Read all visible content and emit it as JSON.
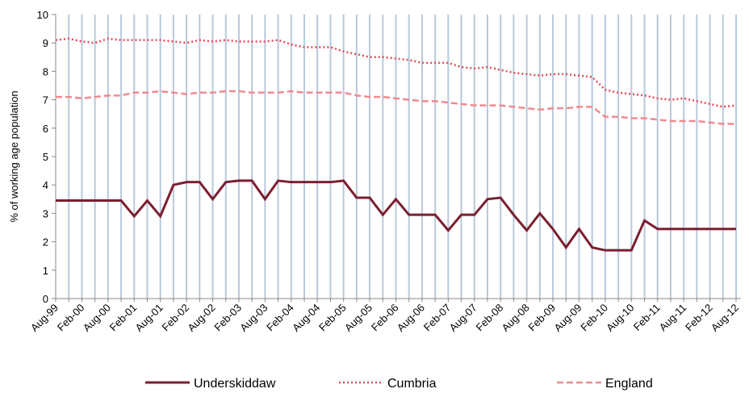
{
  "chart_data": {
    "type": "line",
    "y_label": "% of working age population",
    "categories": [
      "Aug-99",
      null,
      "Feb-00",
      null,
      "Aug-00",
      null,
      "Feb-01",
      null,
      "Aug-01",
      null,
      "Feb-02",
      null,
      "Aug-02",
      null,
      "Feb-03",
      null,
      "Aug-03",
      null,
      "Feb-04",
      null,
      "Aug-04",
      null,
      "Feb-05",
      null,
      "Aug-05",
      null,
      "Feb-06",
      null,
      "Aug-06",
      null,
      "Feb-07",
      null,
      "Aug-07",
      null,
      "Feb-08",
      null,
      "Aug-08",
      null,
      "Feb-09",
      null,
      "Aug-09",
      null,
      "Feb-10",
      null,
      "Aug-10",
      null,
      "Feb-11",
      null,
      "Aug-11",
      null,
      "Feb-12",
      null,
      "Aug-12"
    ],
    "series": [
      {
        "name": "Underskiddaw",
        "color": "#7b1f30",
        "dash": "solid",
        "values": [
          3.45,
          3.45,
          3.45,
          3.45,
          3.45,
          3.45,
          2.9,
          3.45,
          2.9,
          4.0,
          4.1,
          4.1,
          3.5,
          4.1,
          4.15,
          4.15,
          3.5,
          4.15,
          4.1,
          4.1,
          4.1,
          4.1,
          4.15,
          3.55,
          3.55,
          2.95,
          3.5,
          2.95,
          2.95,
          2.95,
          2.4,
          2.95,
          2.95,
          3.5,
          3.55,
          2.95,
          2.4,
          3.0,
          2.45,
          1.8,
          2.45,
          1.8,
          1.7,
          1.7,
          1.7,
          2.75,
          2.45,
          2.45,
          2.45,
          2.45,
          2.45,
          2.45,
          2.45
        ]
      },
      {
        "name": "Cumbria",
        "color": "#e8485a",
        "dash": "dotted",
        "values": [
          9.1,
          9.15,
          9.05,
          9.0,
          9.15,
          9.1,
          9.1,
          9.1,
          9.1,
          9.05,
          9.0,
          9.1,
          9.05,
          9.1,
          9.05,
          9.05,
          9.05,
          9.1,
          8.95,
          8.85,
          8.85,
          8.85,
          8.7,
          8.6,
          8.5,
          8.5,
          8.45,
          8.4,
          8.3,
          8.3,
          8.3,
          8.15,
          8.1,
          8.15,
          8.05,
          7.95,
          7.9,
          7.85,
          7.9,
          7.9,
          7.85,
          7.8,
          7.35,
          7.25,
          7.2,
          7.15,
          7.05,
          7.0,
          7.05,
          6.95,
          6.85,
          6.75,
          6.8
        ]
      },
      {
        "name": "England",
        "color": "#f08a90",
        "dash": "dashed",
        "values": [
          7.1,
          7.1,
          7.05,
          7.1,
          7.15,
          7.15,
          7.25,
          7.25,
          7.3,
          7.25,
          7.2,
          7.25,
          7.25,
          7.3,
          7.3,
          7.25,
          7.25,
          7.25,
          7.3,
          7.25,
          7.25,
          7.25,
          7.25,
          7.15,
          7.1,
          7.1,
          7.05,
          7.0,
          6.95,
          6.95,
          6.9,
          6.85,
          6.8,
          6.8,
          6.8,
          6.75,
          6.7,
          6.65,
          6.7,
          6.7,
          6.75,
          6.75,
          6.4,
          6.4,
          6.35,
          6.35,
          6.3,
          6.25,
          6.25,
          6.25,
          6.2,
          6.15,
          6.15
        ]
      }
    ],
    "ylim": [
      0,
      10
    ],
    "yticks": [
      0,
      1,
      2,
      3,
      4,
      5,
      6,
      7,
      8,
      9,
      10
    ],
    "grid": "x",
    "grid_color": "#b9c9dc",
    "legend": "bottom"
  }
}
